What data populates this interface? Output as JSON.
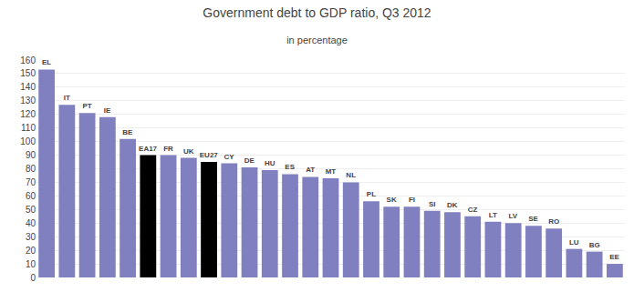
{
  "chart_data": {
    "type": "bar",
    "title": "Government debt to GDP ratio, Q3 2012",
    "subtitle": "in percentage",
    "categories": [
      "EL",
      "IT",
      "PT",
      "IE",
      "BE",
      "EA17",
      "FR",
      "UK",
      "EU27",
      "CY",
      "DE",
      "HU",
      "ES",
      "AT",
      "MT",
      "NL",
      "PL",
      "SK",
      "FI",
      "SI",
      "DK",
      "CZ",
      "LT",
      "LV",
      "SE",
      "RO",
      "LU",
      "BG",
      "EE"
    ],
    "values": [
      153,
      127,
      121,
      118,
      102,
      90,
      90,
      88,
      85,
      84,
      81,
      79,
      76,
      74,
      73,
      70,
      56,
      52,
      52,
      49,
      48,
      45,
      41,
      40,
      38,
      36,
      21,
      19,
      10
    ],
    "colors": [
      "#8080c0",
      "#8080c0",
      "#8080c0",
      "#8080c0",
      "#8080c0",
      "#000000",
      "#8080c0",
      "#8080c0",
      "#000000",
      "#8080c0",
      "#8080c0",
      "#8080c0",
      "#8080c0",
      "#8080c0",
      "#8080c0",
      "#8080c0",
      "#8080c0",
      "#8080c0",
      "#8080c0",
      "#8080c0",
      "#8080c0",
      "#8080c0",
      "#8080c0",
      "#8080c0",
      "#8080c0",
      "#8080c0",
      "#8080c0",
      "#8080c0",
      "#8080c0"
    ],
    "ylim": [
      0,
      160
    ],
    "yticks": [
      0,
      10,
      20,
      30,
      40,
      50,
      60,
      70,
      80,
      90,
      100,
      110,
      120,
      130,
      140,
      150,
      160
    ],
    "grid": true,
    "tick_labels": "y"
  }
}
